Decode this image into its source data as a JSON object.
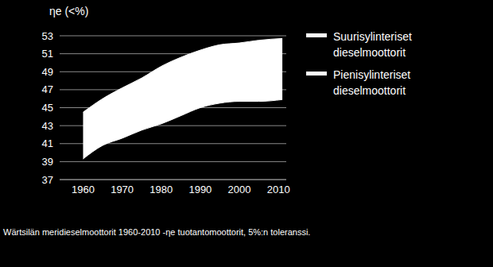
{
  "chart_data": {
    "type": "area",
    "ylabel": "ηe (<%)",
    "caption": "Wärtsilän meridieselmoottorit 1960-2010 -ηe tuotantomoottorit, 5%:n toleranssi.",
    "x": [
      1960,
      1965,
      1970,
      1975,
      1980,
      1985,
      1990,
      1995,
      2000,
      2005,
      2011
    ],
    "series": [
      {
        "name": "Suurisylinteriset dieselmoottorit",
        "color": "#ffffff",
        "values": [
          44.5,
          46.0,
          47.2,
          48.3,
          49.6,
          50.6,
          51.4,
          52.0,
          52.2,
          52.5,
          52.7
        ]
      },
      {
        "name": "Pienisylinteriset dieselmoottorit",
        "color": "#ffffff",
        "values": [
          39.3,
          40.8,
          41.6,
          42.5,
          43.2,
          44.1,
          45.0,
          45.5,
          45.7,
          45.7,
          45.9
        ]
      }
    ],
    "xlim": [
      1954,
      2012
    ],
    "xticks": [
      1960,
      1970,
      1980,
      1990,
      2000,
      2010
    ],
    "ylim": [
      37,
      53
    ],
    "yticks": [
      37,
      39,
      41,
      43,
      45,
      47,
      49,
      51,
      53
    ],
    "grid": true,
    "legend": "right"
  }
}
